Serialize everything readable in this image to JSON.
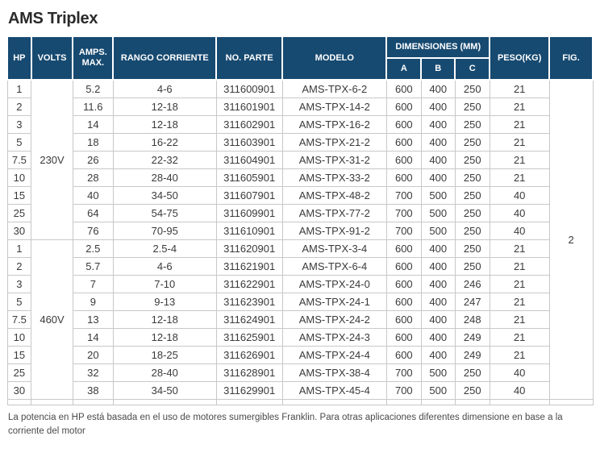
{
  "title": "AMS Triplex",
  "colors": {
    "header_navy": "#174a71",
    "stripe_gray": "#ebebeb",
    "border_gray": "#c8c8c8"
  },
  "table": {
    "headers": {
      "hp": "HP",
      "volts": "VOLTS",
      "amps_max": "AMPS. MAX.",
      "rango_corriente": "RANGO CORRIENTE",
      "no_parte": "NO. PARTE",
      "modelo": "MODELO",
      "dimensiones": "DIMENSIONES (MM)",
      "dim_a": "A",
      "dim_b": "B",
      "dim_c": "C",
      "peso": "PESO(KG)",
      "fig": "FIG."
    },
    "fig_value": "2",
    "sections": [
      {
        "volts": "230V",
        "rows": [
          {
            "hp": "1",
            "amps": "5.2",
            "rango": "4-6",
            "parte": "311600901",
            "modelo": "AMS-TPX-6-2",
            "a": "600",
            "b": "400",
            "c": "250",
            "peso": "21"
          },
          {
            "hp": "2",
            "amps": "11.6",
            "rango": "12-18",
            "parte": "311601901",
            "modelo": "AMS-TPX-14-2",
            "a": "600",
            "b": "400",
            "c": "250",
            "peso": "21"
          },
          {
            "hp": "3",
            "amps": "14",
            "rango": "12-18",
            "parte": "311602901",
            "modelo": "AMS-TPX-16-2",
            "a": "600",
            "b": "400",
            "c": "250",
            "peso": "21"
          },
          {
            "hp": "5",
            "amps": "18",
            "rango": "16-22",
            "parte": "311603901",
            "modelo": "AMS-TPX-21-2",
            "a": "600",
            "b": "400",
            "c": "250",
            "peso": "21"
          },
          {
            "hp": "7.5",
            "amps": "26",
            "rango": "22-32",
            "parte": "311604901",
            "modelo": "AMS-TPX-31-2",
            "a": "600",
            "b": "400",
            "c": "250",
            "peso": "21"
          },
          {
            "hp": "10",
            "amps": "28",
            "rango": "28-40",
            "parte": "311605901",
            "modelo": "AMS-TPX-33-2",
            "a": "600",
            "b": "400",
            "c": "250",
            "peso": "21"
          },
          {
            "hp": "15",
            "amps": "40",
            "rango": "34-50",
            "parte": "311607901",
            "modelo": "AMS-TPX-48-2",
            "a": "700",
            "b": "500",
            "c": "250",
            "peso": "40"
          },
          {
            "hp": "25",
            "amps": "64",
            "rango": "54-75",
            "parte": "311609901",
            "modelo": "AMS-TPX-77-2",
            "a": "700",
            "b": "500",
            "c": "250",
            "peso": "40"
          },
          {
            "hp": "30",
            "amps": "76",
            "rango": "70-95",
            "parte": "311610901",
            "modelo": "AMS-TPX-91-2",
            "a": "700",
            "b": "500",
            "c": "250",
            "peso": "40"
          }
        ]
      },
      {
        "volts": "460V",
        "rows": [
          {
            "hp": "1",
            "amps": "2.5",
            "rango": "2.5-4",
            "parte": "311620901",
            "modelo": "AMS-TPX-3-4",
            "a": "600",
            "b": "400",
            "c": "250",
            "peso": "21"
          },
          {
            "hp": "2",
            "amps": "5.7",
            "rango": "4-6",
            "parte": "311621901",
            "modelo": "AMS-TPX-6-4",
            "a": "600",
            "b": "400",
            "c": "250",
            "peso": "21"
          },
          {
            "hp": "3",
            "amps": "7",
            "rango": "7-10",
            "parte": "311622901",
            "modelo": "AMS-TPX-24-0",
            "a": "600",
            "b": "400",
            "c": "246",
            "peso": "21"
          },
          {
            "hp": "5",
            "amps": "9",
            "rango": "9-13",
            "parte": "311623901",
            "modelo": "AMS-TPX-24-1",
            "a": "600",
            "b": "400",
            "c": "247",
            "peso": "21"
          },
          {
            "hp": "7.5",
            "amps": "13",
            "rango": "12-18",
            "parte": "311624901",
            "modelo": "AMS-TPX-24-2",
            "a": "600",
            "b": "400",
            "c": "248",
            "peso": "21"
          },
          {
            "hp": "10",
            "amps": "14",
            "rango": "12-18",
            "parte": "311625901",
            "modelo": "AMS-TPX-24-3",
            "a": "600",
            "b": "400",
            "c": "249",
            "peso": "21"
          },
          {
            "hp": "15",
            "amps": "20",
            "rango": "18-25",
            "parte": "311626901",
            "modelo": "AMS-TPX-24-4",
            "a": "600",
            "b": "400",
            "c": "249",
            "peso": "21"
          },
          {
            "hp": "25",
            "amps": "32",
            "rango": "28-40",
            "parte": "311628901",
            "modelo": "AMS-TPX-38-4",
            "a": "700",
            "b": "500",
            "c": "250",
            "peso": "40"
          },
          {
            "hp": "30",
            "amps": "38",
            "rango": "34-50",
            "parte": "311629901",
            "modelo": "AMS-TPX-45-4",
            "a": "700",
            "b": "500",
            "c": "250",
            "peso": "40"
          }
        ]
      }
    ]
  },
  "footnote": "La potencia en HP está basada en el uso de motores sumergibles Franklin. Para otras aplicaciones diferentes dimensione en base a la corriente del motor"
}
